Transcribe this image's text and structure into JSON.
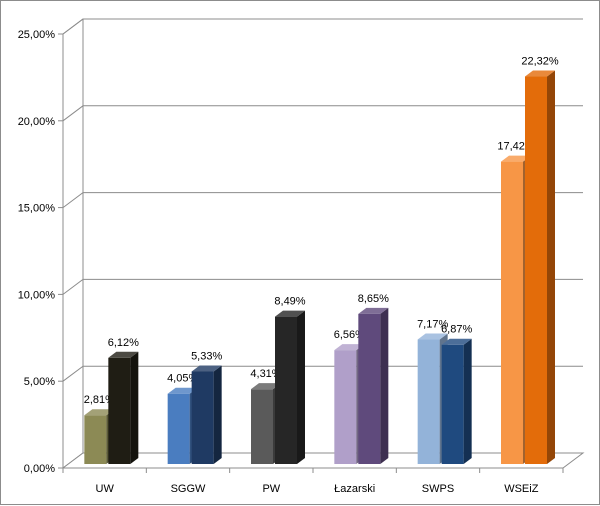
{
  "chart_data": {
    "type": "bar",
    "categories": [
      "UW",
      "SGGW",
      "PW",
      "Łazarski",
      "SWPS",
      "WSEiZ"
    ],
    "series": [
      {
        "values": [
          2.81,
          4.05,
          4.31,
          6.56,
          7.17,
          17.42
        ]
      },
      {
        "values": [
          6.12,
          5.33,
          8.49,
          8.65,
          6.87,
          22.32
        ]
      }
    ],
    "value_labels": [
      [
        "2,81%",
        "4,05%",
        "4,31%",
        "6,56%",
        "7,17%",
        "17,42%"
      ],
      [
        "6,12%",
        "5,33%",
        "8,49%",
        "8,65%",
        "6,87%",
        "22,32%"
      ]
    ],
    "bar_colors": [
      [
        "#8c8a55",
        "#4a7dc0",
        "#5a5a5a",
        "#b09fc9",
        "#93b3d9",
        "#f79646"
      ],
      [
        "#1f1d14",
        "#1f3a63",
        "#262626",
        "#5f4a7c",
        "#1f4a7f",
        "#e36c0a"
      ]
    ],
    "y_ticks": [
      "0,00%",
      "5,00%",
      "10,00%",
      "15,00%",
      "20,00%",
      "25,00%"
    ],
    "ylim": [
      0,
      25
    ],
    "title": "",
    "xlabel": "",
    "ylabel": "",
    "grid": true,
    "legend": "none",
    "three_d": true
  }
}
